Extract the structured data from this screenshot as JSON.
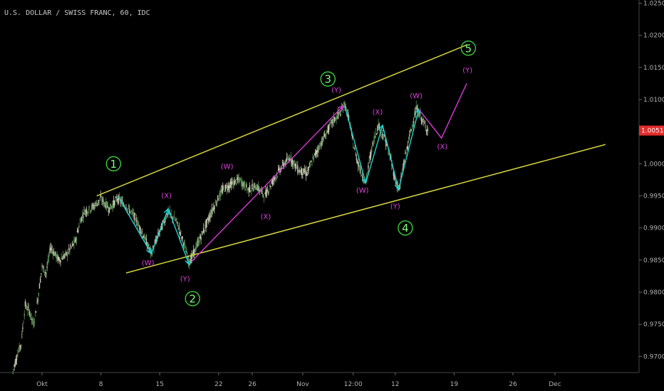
{
  "chart_data": {
    "type": "candlestick",
    "title": "U.S. DOLLAR / SWISS FRANC, 60, IDC",
    "x_tick_labels": [
      "Okt",
      "8",
      "15",
      "22",
      "26",
      "Nov",
      "12:00",
      "12",
      "19",
      "26",
      "Dec"
    ],
    "x_ticks_day": [
      1,
      8,
      15,
      22,
      26,
      32,
      38,
      43,
      50,
      57,
      62
    ],
    "xlim_day": [
      -4,
      72
    ],
    "y_tick_labels": [
      "0.97000",
      "0.97500",
      "0.98000",
      "0.98500",
      "0.99000",
      "0.99500",
      "1.00000",
      "1.00500",
      "1.01000",
      "1.01500",
      "1.02000",
      "1.02500"
    ],
    "y_ticks": [
      0.97,
      0.975,
      0.98,
      0.985,
      0.99,
      0.995,
      1.0,
      1.005,
      1.01,
      1.015,
      1.02,
      1.025
    ],
    "ylim": [
      0.9675,
      1.0255
    ],
    "current_price": {
      "label": "1.00517",
      "value": 1.00517,
      "color": "#e32b2b"
    },
    "price_path": [
      [
        -2.5,
        0.9675
      ],
      [
        -2.0,
        0.97
      ],
      [
        -1.5,
        0.972
      ],
      [
        -1.0,
        0.978
      ],
      [
        -0.5,
        0.977
      ],
      [
        0.0,
        0.975
      ],
      [
        0.5,
        0.979
      ],
      [
        1.0,
        0.984
      ],
      [
        1.5,
        0.983
      ],
      [
        2.0,
        0.987
      ],
      [
        3.0,
        0.985
      ],
      [
        4.0,
        0.986
      ],
      [
        5.0,
        0.988
      ],
      [
        5.5,
        0.991
      ],
      [
        6.0,
        0.9925
      ],
      [
        7.0,
        0.9932
      ],
      [
        8.0,
        0.9945
      ],
      [
        9.0,
        0.993
      ],
      [
        10.0,
        0.9946
      ],
      [
        11.0,
        0.9934
      ],
      [
        12.0,
        0.9918
      ],
      [
        13.0,
        0.989
      ],
      [
        14.0,
        0.986
      ],
      [
        15.0,
        0.9895
      ],
      [
        16.0,
        0.9925
      ],
      [
        17.0,
        0.991
      ],
      [
        18.0,
        0.987
      ],
      [
        18.5,
        0.9845
      ],
      [
        19.5,
        0.9875
      ],
      [
        20.5,
        0.9905
      ],
      [
        21.5,
        0.9935
      ],
      [
        22.5,
        0.996
      ],
      [
        23.5,
        0.9968
      ],
      [
        24.5,
        0.9975
      ],
      [
        25.5,
        0.996
      ],
      [
        26.5,
        0.9965
      ],
      [
        27.5,
        0.995
      ],
      [
        28.5,
        0.9975
      ],
      [
        29.5,
        0.9995
      ],
      [
        30.5,
        1.001
      ],
      [
        31.5,
        0.999
      ],
      [
        32.5,
        0.9985
      ],
      [
        33.5,
        1.0015
      ],
      [
        34.5,
        1.004
      ],
      [
        35.5,
        1.0065
      ],
      [
        36.5,
        1.008
      ],
      [
        37.0,
        1.0093
      ],
      [
        37.5,
        1.007
      ],
      [
        38.0,
        1.003
      ],
      [
        38.5,
        1.0005
      ],
      [
        39.0,
        0.9985
      ],
      [
        39.5,
        0.997
      ],
      [
        40.0,
        1.001
      ],
      [
        40.5,
        1.004
      ],
      [
        41.0,
        1.006
      ],
      [
        41.5,
        1.0045
      ],
      [
        42.0,
        1.003
      ],
      [
        42.5,
        1.0005
      ],
      [
        43.0,
        0.9975
      ],
      [
        43.5,
        0.996
      ],
      [
        44.0,
        1.0
      ],
      [
        44.5,
        1.003
      ],
      [
        45.0,
        1.006
      ],
      [
        45.5,
        1.0085
      ],
      [
        46.0,
        1.0075
      ],
      [
        46.5,
        1.006
      ],
      [
        47.0,
        1.0052
      ]
    ],
    "channel_lines": [
      {
        "name": "upper-channel",
        "color": "#d4d43a",
        "points": [
          [
            7.5,
            0.995
          ],
          [
            51.5,
            1.0185
          ]
        ]
      },
      {
        "name": "lower-channel",
        "color": "#d4d43a",
        "points": [
          [
            11.0,
            0.983
          ],
          [
            68.0,
            1.003
          ]
        ]
      }
    ],
    "wave_paths": [
      {
        "name": "cyan-1",
        "color": "#1fd0d0",
        "arrow": true,
        "points": [
          [
            10.0,
            0.995
          ],
          [
            14.0,
            0.986
          ]
        ]
      },
      {
        "name": "cyan-2",
        "color": "#1fd0d0",
        "arrow": true,
        "points": [
          [
            14.0,
            0.986
          ],
          [
            16.0,
            0.993
          ]
        ]
      },
      {
        "name": "cyan-3",
        "color": "#1fd0d0",
        "arrow": true,
        "points": [
          [
            16.0,
            0.993
          ],
          [
            18.5,
            0.9843
          ]
        ]
      },
      {
        "name": "magenta-impulse",
        "color": "#d83ad8",
        "arrow": true,
        "points": [
          [
            18.8,
            0.9848
          ],
          [
            36.8,
            1.009
          ]
        ]
      },
      {
        "name": "cyan-4",
        "color": "#1fd0d0",
        "arrow": true,
        "points": [
          [
            37.0,
            1.009
          ],
          [
            39.5,
            0.997
          ]
        ]
      },
      {
        "name": "cyan-5",
        "color": "#1fd0d0",
        "arrow": true,
        "points": [
          [
            39.5,
            0.997
          ],
          [
            41.5,
            1.006
          ]
        ]
      },
      {
        "name": "cyan-6",
        "color": "#1fd0d0",
        "arrow": true,
        "points": [
          [
            41.5,
            1.006
          ],
          [
            43.4,
            0.996
          ]
        ]
      },
      {
        "name": "cyan-7",
        "color": "#1fd0d0",
        "arrow": true,
        "points": [
          [
            43.4,
            0.996
          ],
          [
            45.8,
            1.0085
          ]
        ]
      },
      {
        "name": "magenta-projection",
        "color": "#d83ad8",
        "arrow": false,
        "points": [
          [
            45.8,
            1.0085
          ],
          [
            48.5,
            1.004
          ],
          [
            51.5,
            1.0125
          ]
        ]
      }
    ],
    "wave_labels": [
      {
        "text": "(W)",
        "x": 13.6,
        "y": 0.9842
      },
      {
        "text": "(X)",
        "x": 15.8,
        "y": 0.9947
      },
      {
        "text": "(Y)",
        "x": 18.0,
        "y": 0.9817
      },
      {
        "text": "(W)",
        "x": 23.0,
        "y": 0.9992
      },
      {
        "text": "(X)",
        "x": 27.6,
        "y": 0.9914
      },
      {
        "text": "(Y)",
        "x": 36.0,
        "y": 1.0111
      },
      {
        "text": "(X)",
        "x": 40.9,
        "y": 1.0077
      },
      {
        "text": "(W)",
        "x": 39.1,
        "y": 0.9955
      },
      {
        "text": "(W)",
        "x": 45.5,
        "y": 1.0102
      },
      {
        "text": "(Y)",
        "x": 43.0,
        "y": 0.993
      },
      {
        "text": "(X)",
        "x": 48.6,
        "y": 1.0023
      },
      {
        "text": "(Y)",
        "x": 51.6,
        "y": 1.0142
      }
    ],
    "major_labels": [
      {
        "text": "1",
        "x": 9.5,
        "y": 1.0
      },
      {
        "text": "2",
        "x": 18.9,
        "y": 0.979
      },
      {
        "text": "3",
        "x": 35.0,
        "y": 1.0132
      },
      {
        "text": "4",
        "x": 44.2,
        "y": 0.99
      },
      {
        "text": "5",
        "x": 51.7,
        "y": 1.018
      }
    ]
  }
}
